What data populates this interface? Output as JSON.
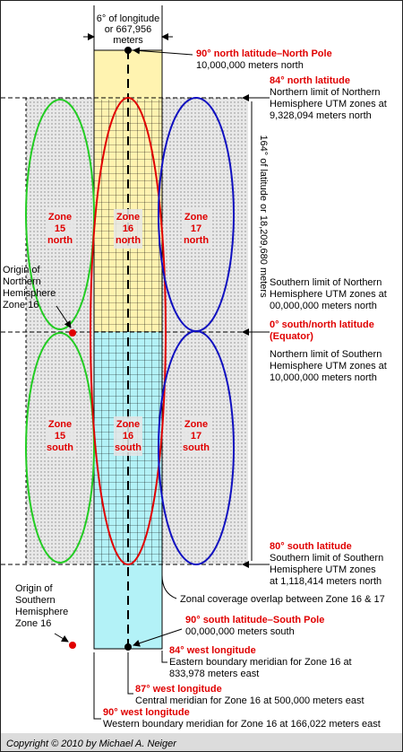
{
  "header": {
    "width_label_1": "6° of longitude",
    "width_label_2": "or 667,956",
    "width_label_3": "meters"
  },
  "vertical_label": "164° of latitude or 18,209,680 meters",
  "zones": [
    {
      "line1": "Zone",
      "line2": "15",
      "line3": "north"
    },
    {
      "line1": "Zone",
      "line2": "16",
      "line3": "north"
    },
    {
      "line1": "Zone",
      "line2": "17",
      "line3": "north"
    },
    {
      "line1": "Zone",
      "line2": "15",
      "line3": "south"
    },
    {
      "line1": "Zone",
      "line2": "16",
      "line3": "south"
    },
    {
      "line1": "Zone",
      "line2": "17",
      "line3": "south"
    }
  ],
  "annotations": {
    "north_pole_title": "90° north latitude–North Pole",
    "north_pole_desc": "10,000,000 meters north",
    "lat84_title": "84° north latitude",
    "lat84_desc1": "Northern limit of Northern",
    "lat84_desc2": "Hemisphere UTM zones at",
    "lat84_desc3": "9,328,094 meters north",
    "south_limit_nh1": "Southern limit of Northern",
    "south_limit_nh2": "Hemisphere UTM zones at",
    "south_limit_nh3": "00,000,000 meters north",
    "equator_title1": "0° south/north latitude",
    "equator_title2": "(Equator)",
    "north_limit_sh1": "Northern limit of Southern",
    "north_limit_sh2": "Hemisphere UTM zones at",
    "north_limit_sh3": "10,000,000 meters north",
    "lat80_title": "80° south latitude",
    "lat80_desc1": "Southern limit of Southern",
    "lat80_desc2": "Hemisphere UTM zones",
    "lat80_desc3": "at 1,118,414 meters north",
    "overlap": "Zonal coverage overlap between Zone 16 & 17",
    "south_pole_title": "90° south latitude–South Pole",
    "south_pole_desc": "00,000,000 meters south",
    "w84_title": "84° west longitude",
    "w84_desc1": "Eastern boundary meridian for Zone 16 at",
    "w84_desc2": "833,978 meters east",
    "w87_title": "87° west longitude",
    "w87_desc": "Central meridian for Zone 16 at 500,000 meters east",
    "w90_title": "90° west longitude",
    "w90_desc": "Western boundary meridian for Zone 16 at 166,022 meters east",
    "origin_n1": "Origin of",
    "origin_n2": "Northern",
    "origin_n3": "Hemisphere",
    "origin_n4": "Zone 16",
    "origin_s1": "Origin of",
    "origin_s2": "Southern",
    "origin_s3": "Hemisphere",
    "origin_s4": "Zone 16"
  },
  "copyright": "Copyright © 2010 by Michael A. Neiger",
  "colors": {
    "north_fill": "#fff3b0",
    "south_fill": "#b3f2f7",
    "zone15": "#22cc22",
    "zone16": "#e00000",
    "zone17": "#1010c0",
    "label_red": "#e00000",
    "background": "#dcdcdc"
  }
}
